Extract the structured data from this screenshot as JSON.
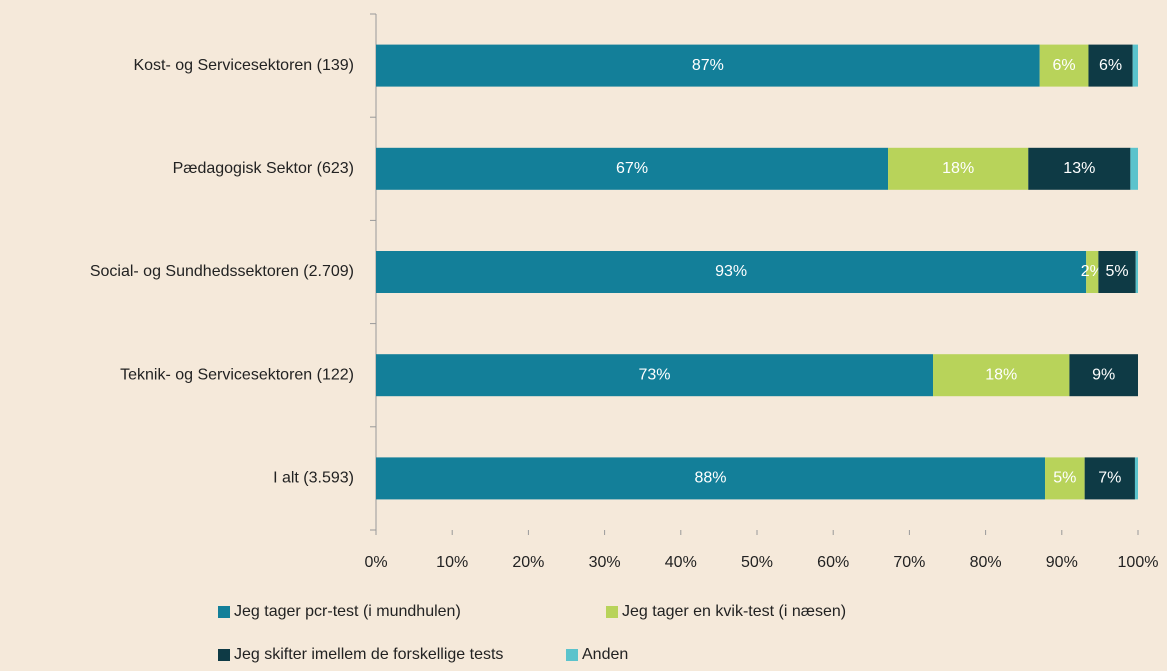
{
  "chart_data": {
    "type": "stacked_barh",
    "categories": [
      "Kost- og Servicesektoren (139)",
      "Pædagogisk Sektor (623)",
      "Social- og Sundhedssektoren (2.709)",
      "Teknik- og Servicesektoren (122)",
      "I alt (3.593)"
    ],
    "series": [
      {
        "name": "Jeg tager pcr-test (i mundhulen)",
        "color": "#137f99",
        "values": [
          87.1,
          67.2,
          93.2,
          73.1,
          87.8
        ],
        "value_labels": [
          "87%",
          "67%",
          "93%",
          "73%",
          "88%"
        ]
      },
      {
        "name": "Jeg tager en kvik-test (i næsen)",
        "color": "#b8d35a",
        "values": [
          6.4,
          18.4,
          1.6,
          17.9,
          5.2
        ],
        "value_labels": [
          "6%",
          "18%",
          "2%",
          "18%",
          "5%"
        ]
      },
      {
        "name": "Jeg skifter imellem de forskellige tests",
        "color": "#0e3a45",
        "values": [
          5.8,
          13.4,
          4.9,
          9.0,
          6.6
        ],
        "value_labels": [
          "6%",
          "13%",
          "5%",
          "9%",
          "7%"
        ]
      },
      {
        "name": "Anden",
        "color": "#5bc3cc",
        "values": [
          0.7,
          1.0,
          0.3,
          0,
          0.4
        ]
      }
    ],
    "xlim": [
      0,
      100
    ],
    "xticks": [
      {
        "value": 0,
        "label": "0%"
      },
      {
        "value": 10,
        "label": "10%"
      },
      {
        "value": 20,
        "label": "20%"
      },
      {
        "value": 30,
        "label": "30%"
      },
      {
        "value": 40,
        "label": "40%"
      },
      {
        "value": 50,
        "label": "50%"
      },
      {
        "value": 60,
        "label": "60%"
      },
      {
        "value": 70,
        "label": "70%"
      },
      {
        "value": 80,
        "label": "80%"
      },
      {
        "value": 90,
        "label": "90%"
      },
      {
        "value": 100,
        "label": "100%"
      }
    ],
    "legend": "bottom"
  }
}
